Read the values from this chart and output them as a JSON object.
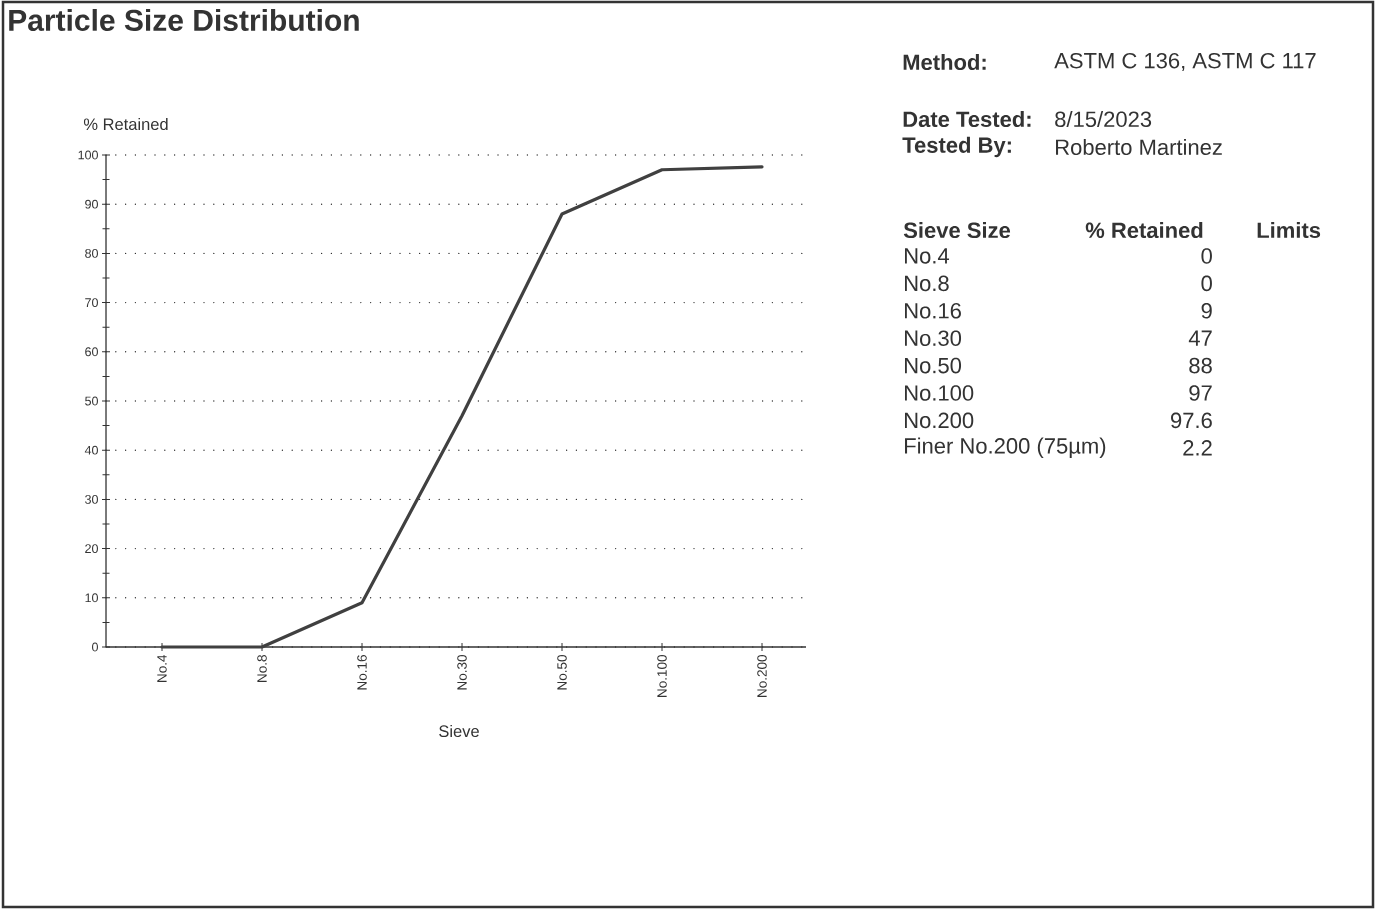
{
  "chart_data": {
    "type": "line",
    "title": "Particle Size Distribution",
    "xlabel": "Sieve",
    "ylabel": "% Retained",
    "categories": [
      "No.4",
      "No.8",
      "No.16",
      "No.30",
      "No.50",
      "No.100",
      "No.200"
    ],
    "values": [
      0,
      0,
      9,
      47,
      88,
      97,
      97.6
    ],
    "color": "#404040",
    "ylim": [
      0,
      100
    ],
    "yticks": [
      0,
      10,
      20,
      30,
      40,
      50,
      60,
      70,
      80,
      90,
      100
    ],
    "grid": "y",
    "marker": "none",
    "line_style": "solid",
    "annotations": [
      "Method:",
      "ASTM C 136, ASTM C 117",
      "Date Tested:",
      "8/15/2023",
      "Tested By:",
      "Roberto Martinez",
      "Sieve Size",
      "% Retained",
      "Limits",
      "No.4",
      "0",
      "No.8",
      "0",
      "No.16",
      "9",
      "No.30",
      "47",
      "No.50",
      "88",
      "No.100",
      "97",
      "No.200",
      "97.6",
      "Finer No.200 (75µm)",
      "2.2"
    ]
  }
}
